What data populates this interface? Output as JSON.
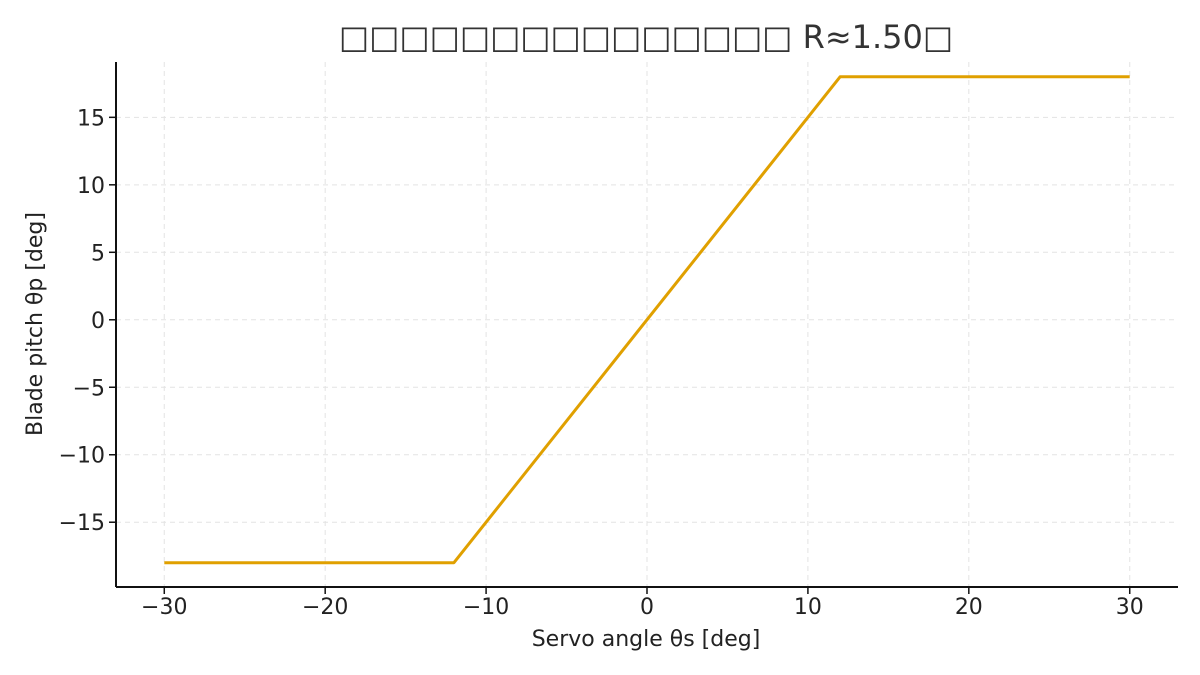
{
  "chart_data": {
    "type": "line",
    "title": "□□□□□□□□□□□□□□□ R≈1.50□",
    "xlabel": "Servo angle θs [deg]",
    "ylabel": "Blade pitch θp [deg]",
    "xlim": [
      -33,
      33
    ],
    "ylim": [
      -19.8,
      19.1
    ],
    "xticks": [
      -30,
      -20,
      -10,
      0,
      10,
      20,
      30
    ],
    "xtick_labels": [
      "−30",
      "−20",
      "−10",
      "0",
      "10",
      "20",
      "30"
    ],
    "yticks": [
      -15,
      -10,
      -5,
      0,
      5,
      10,
      15
    ],
    "ytick_labels": [
      "−15",
      "−10",
      "−5",
      "0",
      "5",
      "10",
      "15"
    ],
    "grid": true,
    "series": [
      {
        "color": "#E0A000",
        "x": [
          -30,
          -12,
          12,
          30
        ],
        "y": [
          -18,
          -18,
          18,
          18
        ]
      }
    ]
  }
}
